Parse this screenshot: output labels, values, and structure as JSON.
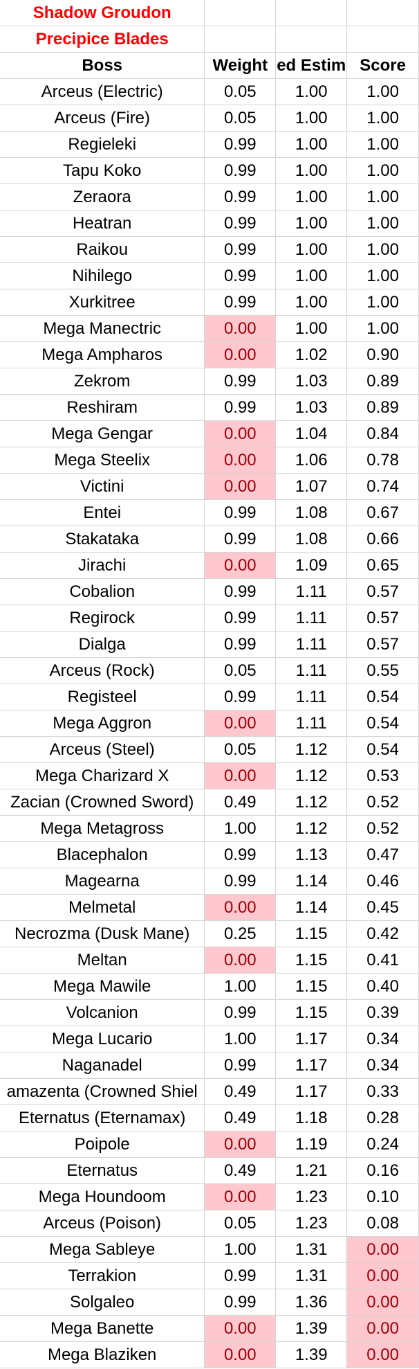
{
  "title_line1": "Shadow Groudon",
  "title_line2": "Precipice Blades",
  "headers": {
    "boss": "Boss",
    "weight": "Weight",
    "estimator": "ed Estim",
    "score": "Score"
  },
  "highlight_color": "#ffc7ce",
  "rows": [
    {
      "boss": "Arceus (Electric)",
      "weight": "0.05",
      "est": "1.00",
      "score": "1.00",
      "wh": false,
      "sh": false
    },
    {
      "boss": "Arceus (Fire)",
      "weight": "0.05",
      "est": "1.00",
      "score": "1.00",
      "wh": false,
      "sh": false
    },
    {
      "boss": "Regieleki",
      "weight": "0.99",
      "est": "1.00",
      "score": "1.00",
      "wh": false,
      "sh": false
    },
    {
      "boss": "Tapu Koko",
      "weight": "0.99",
      "est": "1.00",
      "score": "1.00",
      "wh": false,
      "sh": false
    },
    {
      "boss": "Zeraora",
      "weight": "0.99",
      "est": "1.00",
      "score": "1.00",
      "wh": false,
      "sh": false
    },
    {
      "boss": "Heatran",
      "weight": "0.99",
      "est": "1.00",
      "score": "1.00",
      "wh": false,
      "sh": false
    },
    {
      "boss": "Raikou",
      "weight": "0.99",
      "est": "1.00",
      "score": "1.00",
      "wh": false,
      "sh": false
    },
    {
      "boss": "Nihilego",
      "weight": "0.99",
      "est": "1.00",
      "score": "1.00",
      "wh": false,
      "sh": false
    },
    {
      "boss": "Xurkitree",
      "weight": "0.99",
      "est": "1.00",
      "score": "1.00",
      "wh": false,
      "sh": false
    },
    {
      "boss": "Mega Manectric",
      "weight": "0.00",
      "est": "1.00",
      "score": "1.00",
      "wh": true,
      "sh": false
    },
    {
      "boss": "Mega Ampharos",
      "weight": "0.00",
      "est": "1.02",
      "score": "0.90",
      "wh": true,
      "sh": false
    },
    {
      "boss": "Zekrom",
      "weight": "0.99",
      "est": "1.03",
      "score": "0.89",
      "wh": false,
      "sh": false
    },
    {
      "boss": "Reshiram",
      "weight": "0.99",
      "est": "1.03",
      "score": "0.89",
      "wh": false,
      "sh": false
    },
    {
      "boss": "Mega Gengar",
      "weight": "0.00",
      "est": "1.04",
      "score": "0.84",
      "wh": true,
      "sh": false
    },
    {
      "boss": "Mega Steelix",
      "weight": "0.00",
      "est": "1.06",
      "score": "0.78",
      "wh": true,
      "sh": false
    },
    {
      "boss": "Victini",
      "weight": "0.00",
      "est": "1.07",
      "score": "0.74",
      "wh": true,
      "sh": false
    },
    {
      "boss": "Entei",
      "weight": "0.99",
      "est": "1.08",
      "score": "0.67",
      "wh": false,
      "sh": false
    },
    {
      "boss": "Stakataka",
      "weight": "0.99",
      "est": "1.08",
      "score": "0.66",
      "wh": false,
      "sh": false
    },
    {
      "boss": "Jirachi",
      "weight": "0.00",
      "est": "1.09",
      "score": "0.65",
      "wh": true,
      "sh": false
    },
    {
      "boss": "Cobalion",
      "weight": "0.99",
      "est": "1.11",
      "score": "0.57",
      "wh": false,
      "sh": false
    },
    {
      "boss": "Regirock",
      "weight": "0.99",
      "est": "1.11",
      "score": "0.57",
      "wh": false,
      "sh": false
    },
    {
      "boss": "Dialga",
      "weight": "0.99",
      "est": "1.11",
      "score": "0.57",
      "wh": false,
      "sh": false
    },
    {
      "boss": "Arceus (Rock)",
      "weight": "0.05",
      "est": "1.11",
      "score": "0.55",
      "wh": false,
      "sh": false
    },
    {
      "boss": "Registeel",
      "weight": "0.99",
      "est": "1.11",
      "score": "0.54",
      "wh": false,
      "sh": false
    },
    {
      "boss": "Mega Aggron",
      "weight": "0.00",
      "est": "1.11",
      "score": "0.54",
      "wh": true,
      "sh": false
    },
    {
      "boss": "Arceus (Steel)",
      "weight": "0.05",
      "est": "1.12",
      "score": "0.54",
      "wh": false,
      "sh": false
    },
    {
      "boss": "Mega Charizard X",
      "weight": "0.00",
      "est": "1.12",
      "score": "0.53",
      "wh": true,
      "sh": false
    },
    {
      "boss": "Zacian (Crowned Sword)",
      "weight": "0.49",
      "est": "1.12",
      "score": "0.52",
      "wh": false,
      "sh": false
    },
    {
      "boss": "Mega Metagross",
      "weight": "1.00",
      "est": "1.12",
      "score": "0.52",
      "wh": false,
      "sh": false
    },
    {
      "boss": "Blacephalon",
      "weight": "0.99",
      "est": "1.13",
      "score": "0.47",
      "wh": false,
      "sh": false
    },
    {
      "boss": "Magearna",
      "weight": "0.99",
      "est": "1.14",
      "score": "0.46",
      "wh": false,
      "sh": false
    },
    {
      "boss": "Melmetal",
      "weight": "0.00",
      "est": "1.14",
      "score": "0.45",
      "wh": true,
      "sh": false
    },
    {
      "boss": "Necrozma (Dusk Mane)",
      "weight": "0.25",
      "est": "1.15",
      "score": "0.42",
      "wh": false,
      "sh": false
    },
    {
      "boss": "Meltan",
      "weight": "0.00",
      "est": "1.15",
      "score": "0.41",
      "wh": true,
      "sh": false
    },
    {
      "boss": "Mega Mawile",
      "weight": "1.00",
      "est": "1.15",
      "score": "0.40",
      "wh": false,
      "sh": false
    },
    {
      "boss": "Volcanion",
      "weight": "0.99",
      "est": "1.15",
      "score": "0.39",
      "wh": false,
      "sh": false
    },
    {
      "boss": "Mega Lucario",
      "weight": "1.00",
      "est": "1.17",
      "score": "0.34",
      "wh": false,
      "sh": false
    },
    {
      "boss": "Naganadel",
      "weight": "0.99",
      "est": "1.17",
      "score": "0.34",
      "wh": false,
      "sh": false
    },
    {
      "boss": "amazenta (Crowned Shiel",
      "weight": "0.49",
      "est": "1.17",
      "score": "0.33",
      "wh": false,
      "sh": false
    },
    {
      "boss": "Eternatus (Eternamax)",
      "weight": "0.49",
      "est": "1.18",
      "score": "0.28",
      "wh": false,
      "sh": false
    },
    {
      "boss": "Poipole",
      "weight": "0.00",
      "est": "1.19",
      "score": "0.24",
      "wh": true,
      "sh": false
    },
    {
      "boss": "Eternatus",
      "weight": "0.49",
      "est": "1.21",
      "score": "0.16",
      "wh": false,
      "sh": false
    },
    {
      "boss": "Mega Houndoom",
      "weight": "0.00",
      "est": "1.23",
      "score": "0.10",
      "wh": true,
      "sh": false
    },
    {
      "boss": "Arceus (Poison)",
      "weight": "0.05",
      "est": "1.23",
      "score": "0.08",
      "wh": false,
      "sh": false
    },
    {
      "boss": "Mega Sableye",
      "weight": "1.00",
      "est": "1.31",
      "score": "0.00",
      "wh": false,
      "sh": true
    },
    {
      "boss": "Terrakion",
      "weight": "0.99",
      "est": "1.31",
      "score": "0.00",
      "wh": false,
      "sh": true
    },
    {
      "boss": "Solgaleo",
      "weight": "0.99",
      "est": "1.36",
      "score": "0.00",
      "wh": false,
      "sh": true
    },
    {
      "boss": "Mega Banette",
      "weight": "0.00",
      "est": "1.39",
      "score": "0.00",
      "wh": true,
      "sh": true
    },
    {
      "boss": "Mega Blaziken",
      "weight": "0.00",
      "est": "1.39",
      "score": "0.00",
      "wh": true,
      "sh": true
    }
  ]
}
